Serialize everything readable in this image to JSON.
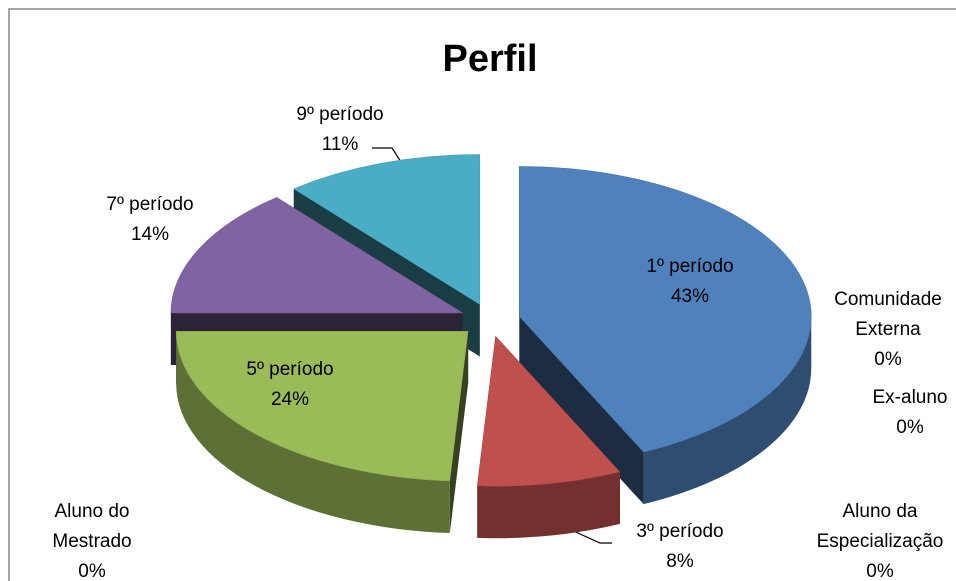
{
  "chart_data": {
    "type": "pie3d",
    "title": "Perfil",
    "categories": [
      "1º período",
      "3º período",
      "5º período",
      "7º período",
      "9º período",
      "Comunidade Externa",
      "Ex-aluno",
      "Aluno da Especialização",
      "Aluno do Mestrado"
    ],
    "values": [
      43,
      8,
      24,
      14,
      11,
      0,
      0,
      0,
      0
    ],
    "value_labels": [
      "43%",
      "8%",
      "24%",
      "14%",
      "11%",
      "0%",
      "0%",
      "0%",
      "0%"
    ],
    "colors": [
      "#4f81bd",
      "#c0504d",
      "#9bbb59",
      "#8064a2",
      "#4bacc6",
      "#f79646",
      "#2c4d75",
      "#772c2a",
      "#5f7530"
    ]
  }
}
